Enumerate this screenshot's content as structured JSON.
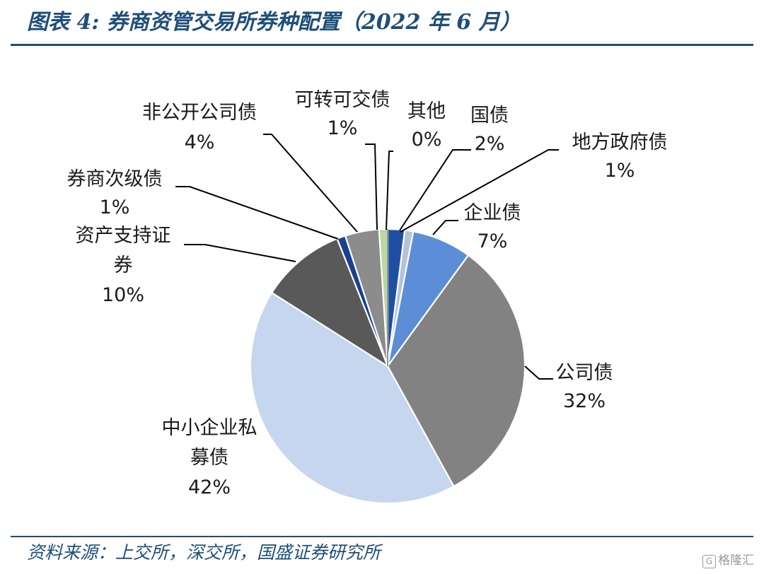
{
  "header": {
    "title": "图表 4:  券商资管交易所券种配置（2022 年 6 月）"
  },
  "footer": {
    "source": "资料来源：上交所，深交所，国盛证券研究所",
    "watermark": "格隆汇"
  },
  "chart_data": {
    "type": "pie",
    "start_angle_deg": 0,
    "direction": "clockwise",
    "slices": [
      {
        "name": "国债",
        "value": 2,
        "label": "2%",
        "color": "#1f4fa3",
        "label_lines": [
          "国债",
          "2%"
        ]
      },
      {
        "name": "地方政府债",
        "value": 1,
        "label": "1%",
        "color": "#b4c3dc",
        "label_lines": [
          "地方政府债",
          "1%"
        ]
      },
      {
        "name": "企业债",
        "value": 7,
        "label": "7%",
        "color": "#5b8ed6",
        "label_lines": [
          "企业债",
          "7%"
        ]
      },
      {
        "name": "公司债",
        "value": 32,
        "label": "32%",
        "color": "#828282",
        "label_lines": [
          "公司债",
          "32%"
        ]
      },
      {
        "name": "中小企业私募债",
        "value": 42,
        "label": "42%",
        "color": "#c5d6ee",
        "label_lines": [
          "中小企业私",
          "募债",
          "42%"
        ]
      },
      {
        "name": "资产支持证券",
        "value": 10,
        "label": "10%",
        "color": "#595959",
        "label_lines": [
          "资产支持证",
          "券",
          "10%"
        ]
      },
      {
        "name": "券商次级债",
        "value": 1,
        "label": "1%",
        "color": "#1c3f94",
        "label_lines": [
          "券商次级债",
          "1%"
        ]
      },
      {
        "name": "非公开公司债",
        "value": 4,
        "label": "4%",
        "color": "#8c8c8c",
        "label_lines": [
          "非公开公司债",
          "4%"
        ]
      },
      {
        "name": "可转可交债",
        "value": 1,
        "label": "1%",
        "color": "#b9d7a0",
        "label_lines": [
          "可转可交债",
          "1%"
        ]
      },
      {
        "name": "其他",
        "value": 0,
        "label": "0%",
        "color": "#2a2a2a",
        "label_lines": [
          "其他",
          "0%"
        ]
      }
    ]
  }
}
